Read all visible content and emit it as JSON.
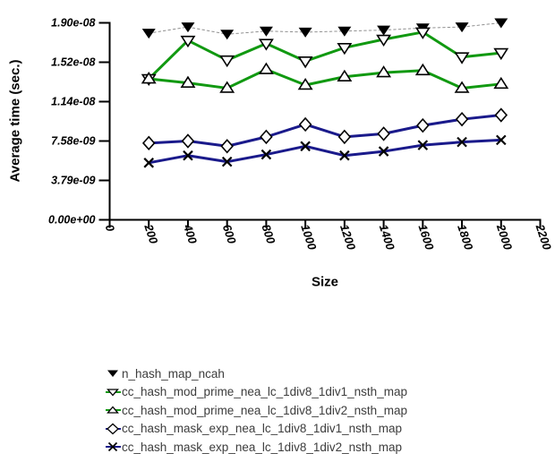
{
  "chart_data": {
    "type": "line",
    "title": "",
    "xlabel": "Size",
    "ylabel": "Average time (sec.)",
    "xlim": [
      0,
      2200
    ],
    "ylim": [
      0,
      1.9e-08
    ],
    "grid": false,
    "legend_position": "bottom-left",
    "x_tick_labels": [
      "0",
      "200",
      "400",
      "600",
      "800",
      "1000",
      "1200",
      "1400",
      "1600",
      "1800",
      "2000",
      "2200"
    ],
    "y_tick_labels": [
      "0.00e+00",
      "3.79e-09",
      "7.58e-09",
      "1.14e-08",
      "1.52e-08",
      "1.90e-08"
    ],
    "x": [
      200,
      400,
      600,
      800,
      1000,
      1200,
      1400,
      1600,
      1800,
      2000
    ],
    "series": [
      {
        "name": "n_hash_map_ncah",
        "marker": "triangle-down-filled",
        "marker_color": "#000000",
        "line_color": "#909090",
        "line_style": "dotted",
        "line_width": 1,
        "values": [
          1.8e-08,
          1.86e-08,
          1.79e-08,
          1.82e-08,
          1.81e-08,
          1.82e-08,
          1.83e-08,
          1.85e-08,
          1.86e-08,
          1.9e-08
        ]
      },
      {
        "name": "cc_hash_mod_prime_nea_lc_1div8_1div1_nsth_map",
        "marker": "triangle-down-open",
        "marker_color": "#000000",
        "line_color": "#119911",
        "line_style": "solid",
        "line_width": 3,
        "values": [
          1.36e-08,
          1.73e-08,
          1.54e-08,
          1.7e-08,
          1.53e-08,
          1.66e-08,
          1.74e-08,
          1.81e-08,
          1.57e-08,
          1.61e-08
        ]
      },
      {
        "name": "cc_hash_mod_prime_nea_lc_1div8_1div2_nsth_map",
        "marker": "triangle-up-open",
        "marker_color": "#000000",
        "line_color": "#119911",
        "line_style": "solid",
        "line_width": 3,
        "values": [
          1.36e-08,
          1.32e-08,
          1.27e-08,
          1.45e-08,
          1.3e-08,
          1.38e-08,
          1.42e-08,
          1.44e-08,
          1.27e-08,
          1.31e-08
        ]
      },
      {
        "name": "cc_hash_mask_exp_nea_lc_1div8_1div1_nsth_map",
        "marker": "diamond-open",
        "marker_color": "#000000",
        "line_color": "#1A1A8B",
        "line_style": "solid",
        "line_width": 3,
        "values": [
          7.4e-09,
          7.6e-09,
          7.1e-09,
          8e-09,
          9.2e-09,
          8e-09,
          8.3e-09,
          9.1e-09,
          9.7e-09,
          1.01e-08
        ]
      },
      {
        "name": "cc_hash_mask_exp_nea_lc_1div8_1div2_nsth_map",
        "marker": "x",
        "marker_color": "#000000",
        "line_color": "#1A1A8B",
        "line_style": "solid",
        "line_width": 3,
        "values": [
          5.5e-09,
          6.2e-09,
          5.6e-09,
          6.3e-09,
          7.1e-09,
          6.2e-09,
          6.6e-09,
          7.2e-09,
          7.5e-09,
          7.7e-09
        ]
      }
    ]
  },
  "colors": {
    "background": "#ffffff",
    "axis": "#000000",
    "tick_text": "#000000",
    "legend_text": "#3d3d3d",
    "green": "#119911",
    "navy": "#1A1A8B",
    "gray_line": "#909090"
  }
}
